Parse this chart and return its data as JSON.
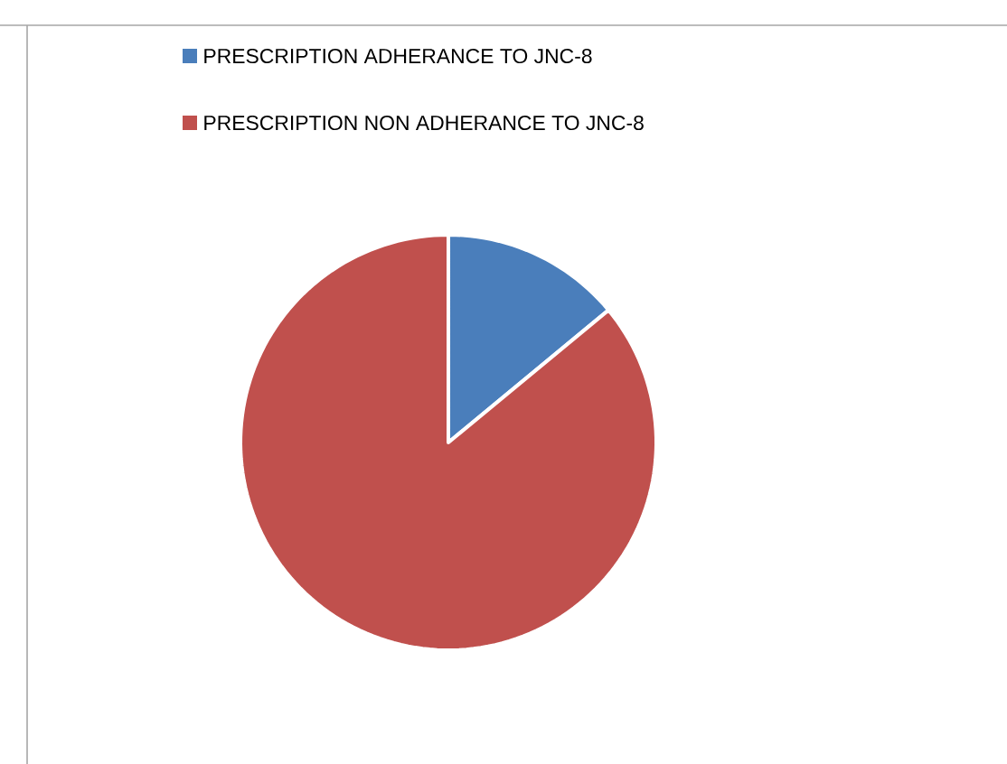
{
  "chart_data": {
    "type": "pie",
    "categories": [
      "PRESCRIPTION ADHERANCE TO JNC-8",
      "PRESCRIPTION NON ADHERANCE TO JNC-8"
    ],
    "values": [
      14,
      86
    ],
    "colors": [
      "#4a7ebb",
      "#c0504d"
    ],
    "legend": "top"
  }
}
